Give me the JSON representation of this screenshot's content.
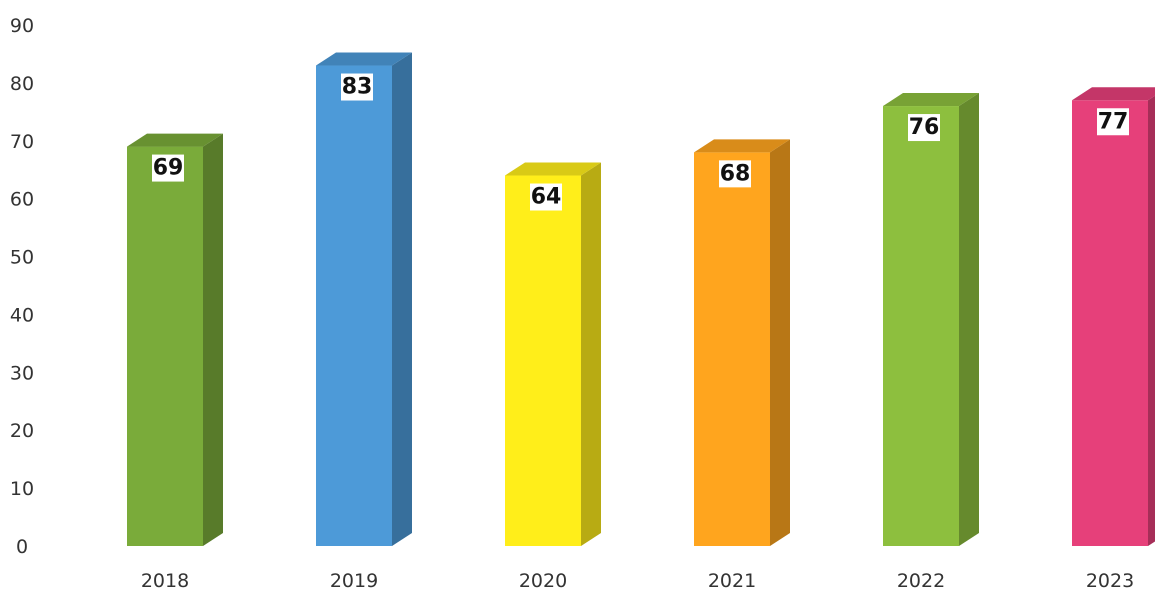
{
  "chart_data": {
    "type": "bar",
    "title": "",
    "xlabel": "",
    "ylabel": "",
    "categories": [
      "2018",
      "2019",
      "2020",
      "2021",
      "2022",
      "2023"
    ],
    "values": [
      69,
      83,
      64,
      68,
      76,
      77
    ],
    "data_labels": [
      "69",
      "83",
      "64",
      "68",
      "76",
      "77"
    ],
    "ylim": [
      0,
      90
    ],
    "yticks": [
      0,
      10,
      20,
      30,
      40,
      50,
      60,
      70,
      80,
      90
    ],
    "ytick_labels": [
      "0",
      "10",
      "20",
      "30",
      "40",
      "50",
      "60",
      "70",
      "80",
      "90"
    ],
    "grid": false,
    "legend": "none",
    "style": "3d-column",
    "colors": [
      "#7aab3a",
      "#4d9ad8",
      "#ffee1a",
      "#ffa51e",
      "#8dbf3e",
      "#e6407a"
    ]
  }
}
